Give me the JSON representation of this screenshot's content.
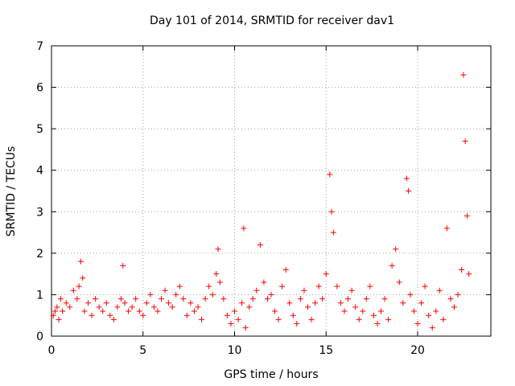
{
  "chart_data": {
    "type": "scatter",
    "title": "Day 101 of 2014, SRMTID for receiver dav1",
    "xlabel": "GPS time / hours",
    "ylabel": "SRMTID / TECUs",
    "xlim": [
      0,
      24
    ],
    "ylim": [
      0,
      7
    ],
    "xticks": [
      0,
      5,
      10,
      15,
      20
    ],
    "yticks": [
      0,
      1,
      2,
      3,
      4,
      5,
      6,
      7
    ],
    "grid": true,
    "marker": "+",
    "color": "#ff0000",
    "series": [
      {
        "name": "SRMTID",
        "x": [
          0.1,
          0.2,
          0.3,
          0.4,
          0.5,
          0.6,
          0.8,
          1.0,
          1.2,
          1.4,
          1.5,
          1.6,
          1.7,
          1.8,
          2.0,
          2.2,
          2.4,
          2.6,
          2.8,
          3.0,
          3.2,
          3.4,
          3.6,
          3.8,
          3.9,
          4.0,
          4.2,
          4.4,
          4.6,
          4.8,
          5.0,
          5.2,
          5.4,
          5.6,
          5.8,
          6.0,
          6.2,
          6.4,
          6.6,
          6.8,
          7.0,
          7.2,
          7.4,
          7.6,
          7.8,
          8.0,
          8.2,
          8.4,
          8.6,
          8.8,
          9.0,
          9.1,
          9.2,
          9.4,
          9.6,
          9.8,
          10.0,
          10.2,
          10.4,
          10.5,
          10.6,
          10.8,
          11.0,
          11.2,
          11.4,
          11.6,
          11.8,
          12.0,
          12.2,
          12.4,
          12.6,
          12.8,
          13.0,
          13.2,
          13.4,
          13.6,
          13.8,
          14.0,
          14.2,
          14.4,
          14.6,
          14.8,
          15.0,
          15.2,
          15.3,
          15.4,
          15.6,
          15.8,
          16.0,
          16.2,
          16.4,
          16.6,
          16.8,
          17.0,
          17.2,
          17.4,
          17.6,
          17.8,
          18.0,
          18.2,
          18.4,
          18.6,
          18.8,
          19.0,
          19.2,
          19.4,
          19.5,
          19.6,
          19.8,
          20.0,
          20.2,
          20.4,
          20.6,
          20.8,
          21.0,
          21.2,
          21.4,
          21.6,
          21.8,
          22.0,
          22.2,
          22.4,
          22.5,
          22.6,
          22.7,
          22.8
        ],
        "y": [
          0.5,
          0.6,
          0.7,
          0.4,
          0.9,
          0.6,
          0.8,
          0.7,
          1.1,
          0.9,
          1.2,
          1.8,
          1.4,
          0.6,
          0.8,
          0.5,
          0.9,
          0.7,
          0.6,
          0.8,
          0.5,
          0.4,
          0.7,
          0.9,
          1.7,
          0.8,
          0.6,
          0.7,
          0.9,
          0.6,
          0.5,
          0.8,
          1.0,
          0.7,
          0.6,
          0.9,
          1.1,
          0.8,
          0.7,
          1.0,
          1.2,
          0.9,
          0.5,
          0.8,
          0.6,
          0.7,
          0.4,
          0.9,
          1.2,
          1.0,
          1.5,
          2.1,
          1.3,
          0.9,
          0.5,
          0.3,
          0.6,
          0.4,
          0.8,
          2.6,
          0.2,
          0.7,
          0.9,
          1.1,
          2.2,
          1.3,
          0.9,
          1.0,
          0.6,
          0.4,
          1.2,
          1.6,
          0.8,
          0.5,
          0.3,
          0.9,
          1.1,
          0.7,
          0.4,
          0.8,
          1.2,
          0.9,
          1.5,
          3.9,
          3.0,
          2.5,
          1.2,
          0.8,
          0.6,
          0.9,
          1.1,
          0.7,
          0.4,
          0.6,
          0.9,
          1.2,
          0.5,
          0.3,
          0.6,
          0.9,
          0.4,
          1.7,
          2.1,
          1.3,
          0.8,
          3.8,
          3.5,
          1.0,
          0.6,
          0.3,
          0.8,
          1.2,
          0.5,
          0.2,
          0.6,
          1.1,
          0.4,
          2.6,
          0.9,
          0.7,
          1.0,
          1.6,
          6.3,
          4.7,
          2.9,
          1.5
        ]
      }
    ]
  }
}
